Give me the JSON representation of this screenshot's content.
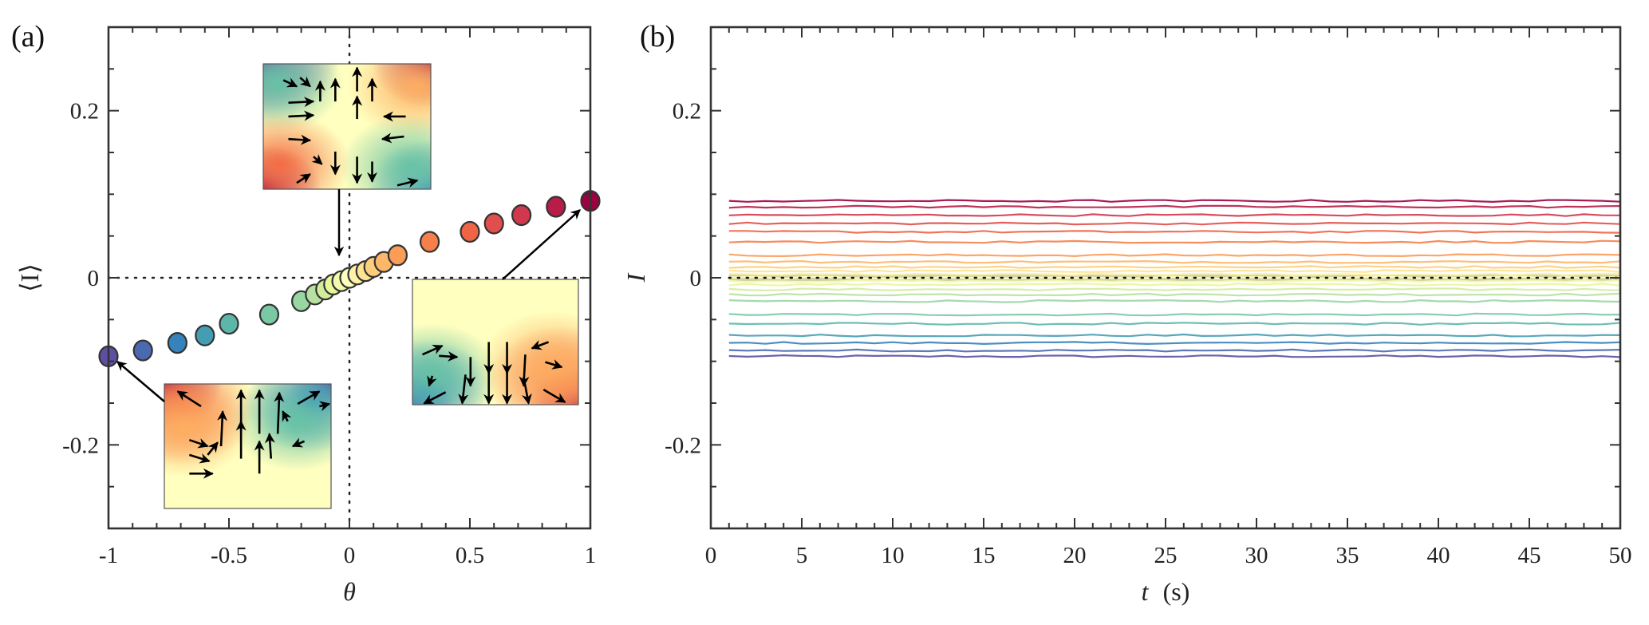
{
  "chart_data": [
    {
      "panel": "(a)",
      "type": "scatter",
      "title": "",
      "xlabel": "θ",
      "ylabel": "⟨I⟩",
      "xlim": [
        -1,
        1
      ],
      "ylim": [
        -0.3,
        0.3
      ],
      "xticks": [
        -1,
        -0.5,
        0,
        0.5,
        1
      ],
      "xtick_labels": [
        "-1",
        "-0.5",
        "0",
        "0.5",
        "1"
      ],
      "yticks": [
        -0.2,
        0,
        0.2
      ],
      "ytick_labels": [
        "-0.2",
        "0",
        "0.2"
      ],
      "reference_lines": {
        "x": 0,
        "y": 0,
        "style": "dotted"
      },
      "colormap": "Spectral (blue at θ=-1, pale yellow at θ=0, dark red at θ=1)",
      "x": [
        -1,
        -0.857,
        -0.714,
        -0.6,
        -0.5,
        -0.333,
        -0.2,
        -0.143,
        -0.1,
        -0.067,
        -0.033,
        0,
        0.033,
        0.067,
        0.1,
        0.143,
        0.2,
        0.333,
        0.5,
        0.6,
        0.714,
        0.857,
        1
      ],
      "y": [
        -0.094,
        -0.087,
        -0.078,
        -0.069,
        -0.055,
        -0.044,
        -0.028,
        -0.02,
        -0.014,
        -0.008,
        -0.004,
        0,
        0.004,
        0.008,
        0.013,
        0.019,
        0.027,
        0.043,
        0.055,
        0.065,
        0.075,
        0.085,
        0.092
      ],
      "insets": [
        {
          "name": "velocity-field-theta-0",
          "description": "four-roll flow field, arrow points to θ=0",
          "points_to": [
            0,
            0
          ]
        },
        {
          "name": "velocity-field-theta-minus-1",
          "description": "flow field with red top-left / blue top-right, arrow points to θ=-1",
          "points_to": [
            -1,
            -0.094
          ]
        },
        {
          "name": "velocity-field-theta-plus-1",
          "description": "flow field with blue bottom-left / red bottom-right, arrow points to θ=1",
          "points_to": [
            1,
            0.092
          ]
        }
      ]
    },
    {
      "panel": "(b)",
      "type": "line",
      "title": "",
      "xlabel": "t (s)",
      "ylabel": "I",
      "xlim": [
        0,
        50
      ],
      "ylim": [
        -0.3,
        0.3
      ],
      "xticks": [
        0,
        5,
        10,
        15,
        20,
        25,
        30,
        35,
        40,
        45,
        50
      ],
      "xtick_labels": [
        "0",
        "5",
        "10",
        "15",
        "20",
        "25",
        "30",
        "35",
        "40",
        "45",
        "50"
      ],
      "yticks": [
        -0.2,
        0,
        0.2
      ],
      "ytick_labels": [
        "-0.2",
        "0",
        "0.2"
      ],
      "t_range": [
        1,
        50
      ],
      "reference_lines": {
        "y": 0,
        "style": "dotted"
      },
      "shaded_band": {
        "y_center": 0,
        "half_width": 0.004,
        "color": "#c8c890"
      },
      "series_note": "one nearly constant time series per θ value in panel (a), colored by the same Spectral colormap",
      "series_levels": [
        -0.094,
        -0.087,
        -0.078,
        -0.069,
        -0.055,
        -0.044,
        -0.028,
        -0.02,
        -0.014,
        -0.008,
        -0.004,
        0,
        0.004,
        0.008,
        0.013,
        0.019,
        0.027,
        0.043,
        0.055,
        0.065,
        0.075,
        0.085,
        0.092
      ],
      "fluctuation_amplitude": 0.002
    }
  ],
  "labels": {
    "panel_a": "(a)",
    "panel_b": "(b)",
    "a_xlabel": "θ",
    "a_ylabel": "⟨I⟩",
    "b_xlabel_var": "t",
    "b_xlabel_unit": "(s)",
    "b_ylabel": "I"
  }
}
